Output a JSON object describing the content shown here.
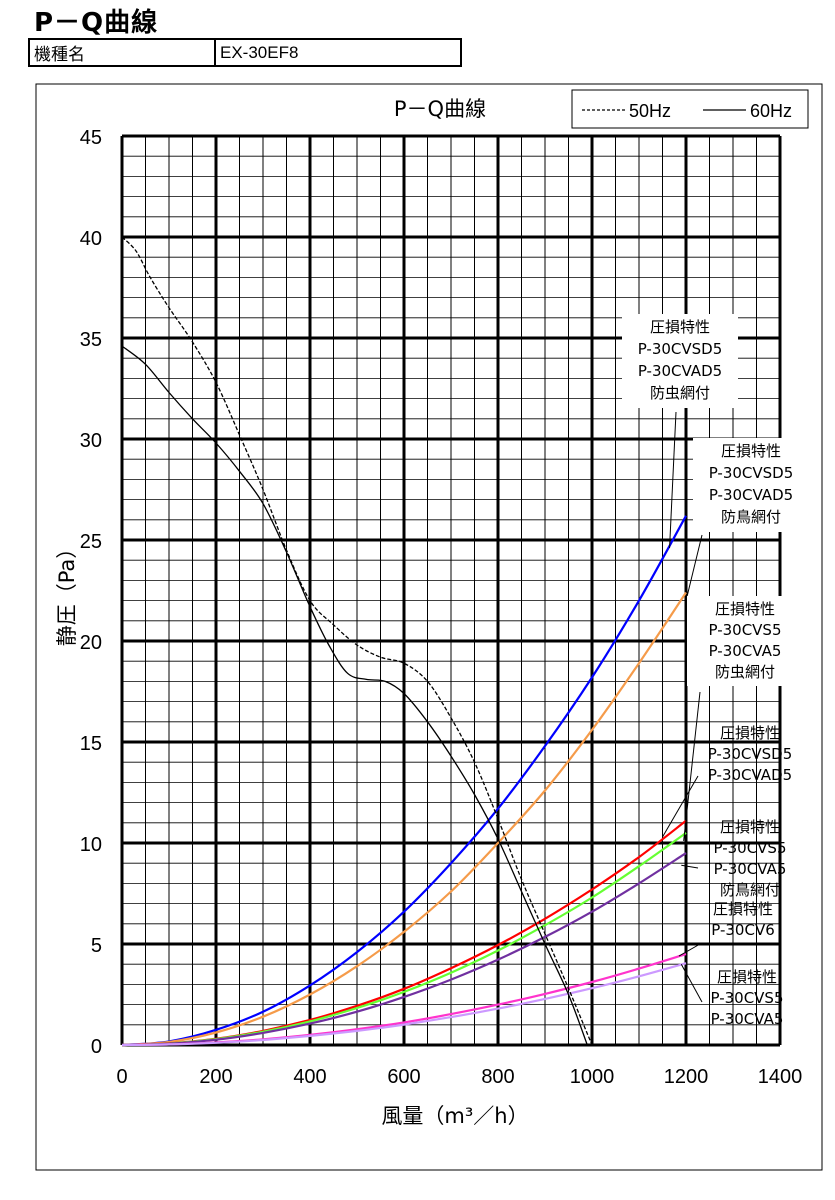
{
  "header": {
    "title": "P－Q曲線",
    "model_label": "機種名",
    "model_value": "EX-30EF8"
  },
  "chart_data": {
    "type": "line",
    "title": "P－Q曲線",
    "xlabel": "風量（m³／h）",
    "ylabel": "静圧（Pa）",
    "xlim": [
      0,
      1400
    ],
    "ylim": [
      0,
      45
    ],
    "x_ticks": [
      "0",
      "200",
      "400",
      "600",
      "800",
      "1000",
      "1200",
      "1400"
    ],
    "y_ticks": [
      "0",
      "5",
      "10",
      "15",
      "20",
      "25",
      "30",
      "35",
      "40",
      "45"
    ],
    "grid": true,
    "legend": {
      "position": "top-right",
      "dashed_label": "50Hz",
      "solid_label": "60Hz"
    },
    "fan_curves": [
      {
        "name": "50Hz",
        "style": "dashed",
        "color": "#000000",
        "points": [
          [
            0,
            40
          ],
          [
            30,
            39.3
          ],
          [
            60,
            38
          ],
          [
            100,
            36.5
          ],
          [
            150,
            34.8
          ],
          [
            200,
            32.8
          ],
          [
            250,
            30.2
          ],
          [
            300,
            27.5
          ],
          [
            350,
            24.5
          ],
          [
            400,
            22
          ],
          [
            450,
            20.8
          ],
          [
            500,
            19.8
          ],
          [
            550,
            19.2
          ],
          [
            600,
            18.9
          ],
          [
            650,
            18
          ],
          [
            700,
            16.2
          ],
          [
            750,
            14
          ],
          [
            800,
            11.2
          ],
          [
            850,
            8.2
          ],
          [
            900,
            5.5
          ],
          [
            950,
            2.8
          ],
          [
            1000,
            0
          ]
        ]
      },
      {
        "name": "60Hz",
        "style": "solid",
        "color": "#000000",
        "points": [
          [
            0,
            34.6
          ],
          [
            50,
            33.7
          ],
          [
            100,
            32.3
          ],
          [
            150,
            31
          ],
          [
            200,
            29.8
          ],
          [
            250,
            28.4
          ],
          [
            300,
            26.8
          ],
          [
            350,
            24.4
          ],
          [
            400,
            21.7
          ],
          [
            440,
            19.8
          ],
          [
            480,
            18.4
          ],
          [
            520,
            18.1
          ],
          [
            560,
            18
          ],
          [
            600,
            17.4
          ],
          [
            650,
            16
          ],
          [
            700,
            14.3
          ],
          [
            750,
            12.4
          ],
          [
            800,
            10.2
          ],
          [
            850,
            7.6
          ],
          [
            900,
            5
          ],
          [
            950,
            2.5
          ],
          [
            990,
            0
          ]
        ]
      }
    ],
    "series": [
      {
        "color": "#0000ff",
        "label_index": 0,
        "points": [
          [
            0,
            0
          ],
          [
            100,
            0.18
          ],
          [
            200,
            0.75
          ],
          [
            300,
            1.65
          ],
          [
            400,
            2.95
          ],
          [
            500,
            4.6
          ],
          [
            600,
            6.6
          ],
          [
            700,
            9
          ],
          [
            800,
            11.7
          ],
          [
            900,
            14.8
          ],
          [
            1000,
            18.2
          ],
          [
            1100,
            22
          ],
          [
            1200,
            26.2
          ]
        ]
      },
      {
        "color": "#f59b4a",
        "label_index": 1,
        "points": [
          [
            0,
            0
          ],
          [
            100,
            0.15
          ],
          [
            200,
            0.62
          ],
          [
            300,
            1.4
          ],
          [
            400,
            2.5
          ],
          [
            500,
            3.9
          ],
          [
            600,
            5.6
          ],
          [
            700,
            7.6
          ],
          [
            800,
            10
          ],
          [
            900,
            12.6
          ],
          [
            1000,
            15.6
          ],
          [
            1100,
            18.9
          ],
          [
            1200,
            22.4
          ]
        ]
      },
      {
        "color": "#ff0000",
        "label_index": 3,
        "points": [
          [
            0,
            0
          ],
          [
            100,
            0.08
          ],
          [
            200,
            0.31
          ],
          [
            300,
            0.7
          ],
          [
            400,
            1.24
          ],
          [
            500,
            1.94
          ],
          [
            600,
            2.78
          ],
          [
            700,
            3.8
          ],
          [
            800,
            4.95
          ],
          [
            900,
            6.25
          ],
          [
            1000,
            7.7
          ],
          [
            1100,
            9.3
          ],
          [
            1200,
            11.1
          ]
        ]
      },
      {
        "color": "#66ff33",
        "label_index": 2,
        "points": [
          [
            0,
            0
          ],
          [
            100,
            0.07
          ],
          [
            200,
            0.29
          ],
          [
            300,
            0.66
          ],
          [
            400,
            1.17
          ],
          [
            500,
            1.83
          ],
          [
            600,
            2.63
          ],
          [
            700,
            3.58
          ],
          [
            800,
            4.68
          ],
          [
            900,
            5.93
          ],
          [
            1000,
            7.3
          ],
          [
            1100,
            8.85
          ],
          [
            1200,
            10.5
          ]
        ]
      },
      {
        "color": "#7030a0",
        "label_index": 4,
        "points": [
          [
            0,
            0
          ],
          [
            100,
            0.066
          ],
          [
            200,
            0.26
          ],
          [
            300,
            0.6
          ],
          [
            400,
            1.06
          ],
          [
            500,
            1.65
          ],
          [
            600,
            2.38
          ],
          [
            700,
            3.24
          ],
          [
            800,
            4.23
          ],
          [
            900,
            5.35
          ],
          [
            1000,
            6.6
          ],
          [
            1100,
            8
          ],
          [
            1200,
            9.5
          ]
        ]
      },
      {
        "color": "#ff33cc",
        "label_index": 5,
        "points": [
          [
            0,
            0
          ],
          [
            100,
            0.03
          ],
          [
            200,
            0.13
          ],
          [
            300,
            0.28
          ],
          [
            400,
            0.5
          ],
          [
            500,
            0.78
          ],
          [
            600,
            1.12
          ],
          [
            700,
            1.53
          ],
          [
            800,
            2
          ],
          [
            900,
            2.53
          ],
          [
            1000,
            3.12
          ],
          [
            1100,
            3.78
          ],
          [
            1200,
            4.5
          ]
        ]
      },
      {
        "color": "#cc99ff",
        "label_index": 6,
        "points": [
          [
            0,
            0
          ],
          [
            100,
            0.028
          ],
          [
            200,
            0.11
          ],
          [
            300,
            0.25
          ],
          [
            400,
            0.45
          ],
          [
            500,
            0.7
          ],
          [
            600,
            1.01
          ],
          [
            700,
            1.38
          ],
          [
            800,
            1.8
          ],
          [
            900,
            2.28
          ],
          [
            1000,
            2.81
          ],
          [
            1100,
            3.4
          ],
          [
            1200,
            4.05
          ]
        ]
      }
    ],
    "annotations": [
      {
        "lines": [
          "圧損特性",
          "P-30CVSD5",
          "P-30CVAD5",
          "防虫網付"
        ]
      },
      {
        "lines": [
          "圧損特性",
          "P-30CVSD5",
          "P-30CVAD5",
          "防鳥網付"
        ]
      },
      {
        "lines": [
          "圧損特性",
          "P-30CVS5",
          "P-30CVA5",
          "防虫網付"
        ]
      },
      {
        "lines": [
          "圧損特性",
          "P-30CVSD5",
          "P-30CVAD5"
        ]
      },
      {
        "lines": [
          "圧損特性",
          "P-30CVS5",
          "P-30CVA5",
          "防鳥網付"
        ]
      },
      {
        "lines": [
          "圧損特性",
          "P-30CV6"
        ]
      },
      {
        "lines": [
          "圧損特性",
          "P-30CVS5",
          "P-30CVA5"
        ]
      }
    ]
  }
}
